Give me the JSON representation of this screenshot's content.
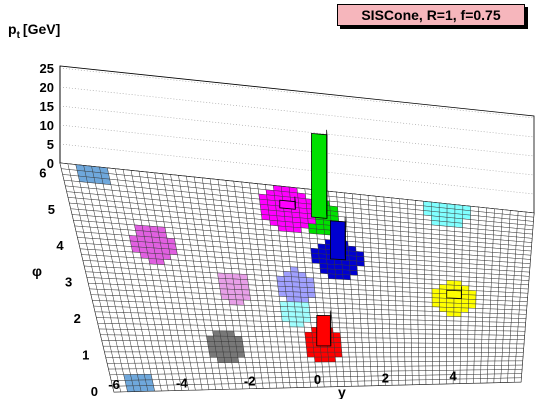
{
  "chart_data": {
    "type": "lego",
    "title": "SISCone, R=1, f=0.75",
    "xlabel": "y",
    "ylabel": "φ",
    "zlabel_main": "p",
    "zlabel_sub": "t",
    "zlabel_unit": "[GeV]",
    "xlim": [
      -6,
      6
    ],
    "ylim": [
      0,
      6.283
    ],
    "zlim": [
      0,
      25
    ],
    "x_ticks": [
      "-6",
      "-4",
      "-2",
      "0",
      "2",
      "4"
    ],
    "y_ticks": [
      "0",
      "1",
      "2",
      "3",
      "4",
      "5",
      "6"
    ],
    "z_ticks": [
      "0",
      "5",
      "10",
      "15",
      "20",
      "25"
    ],
    "grid": true,
    "legend": "none",
    "clusters": [
      {
        "color": "#6fa8dc",
        "y": -5.2,
        "phi": 0.05,
        "r": 0.5,
        "peak": 0.3
      },
      {
        "color": "#6fa8dc",
        "y": -5.2,
        "phi": 6.15,
        "r": 0.4,
        "peak": 0.3
      },
      {
        "color": "#e060e0",
        "y": -4.0,
        "phi": 4.2,
        "r": 0.55,
        "peak": 0.5
      },
      {
        "color": "#e8a0e8",
        "y": -2.0,
        "phi": 3.0,
        "r": 0.5,
        "peak": 0.5
      },
      {
        "color": "#787878",
        "y": -2.5,
        "phi": 1.3,
        "r": 0.5,
        "peak": 0.5
      },
      {
        "color": "#ff00ff",
        "y": -0.3,
        "phi": 5.6,
        "r": 0.7,
        "peak": 2.0
      },
      {
        "color": "#00e000",
        "y": 0.5,
        "phi": 5.4,
        "r": 0.55,
        "peak": 22.0
      },
      {
        "color": "#0000d0",
        "y": 0.9,
        "phi": 4.1,
        "r": 0.65,
        "peak": 10.0
      },
      {
        "color": "#a0a0ff",
        "y": -0.3,
        "phi": 3.2,
        "r": 0.5,
        "peak": 1.0
      },
      {
        "color": "#a0ffff",
        "y": -0.4,
        "phi": 2.3,
        "r": 0.45,
        "peak": 1.0
      },
      {
        "color": "#ff0000",
        "y": 0.3,
        "phi": 1.3,
        "r": 0.55,
        "peak": 8.0
      },
      {
        "color": "#ffff00",
        "y": 4.0,
        "phi": 3.0,
        "r": 0.6,
        "peak": 2.0
      },
      {
        "color": "#80ffff",
        "y": 3.8,
        "phi": 6.0,
        "r": 0.55,
        "peak": 1.0
      }
    ]
  }
}
